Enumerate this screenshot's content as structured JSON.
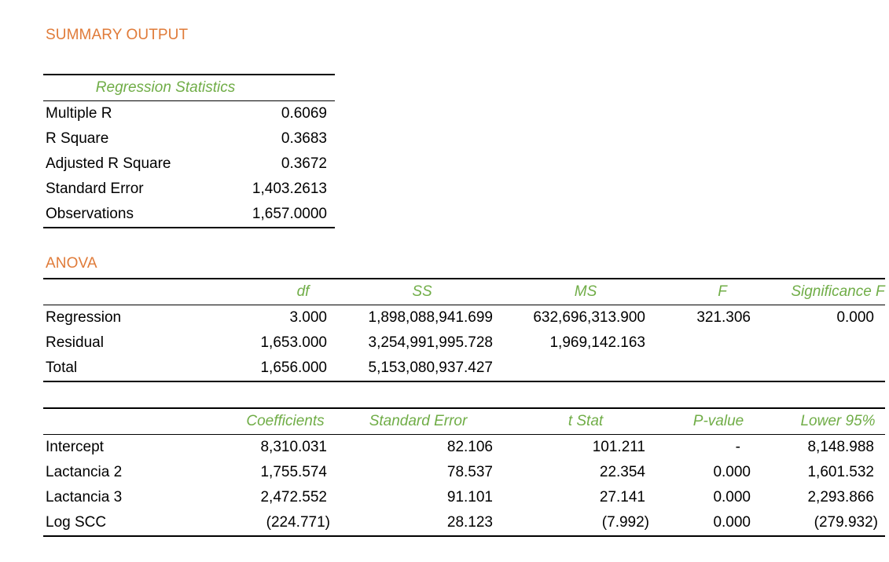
{
  "summary_title": "SUMMARY OUTPUT",
  "regression_statistics": {
    "header": "Regression Statistics",
    "rows": [
      {
        "label": "Multiple R",
        "value": "0.6069"
      },
      {
        "label": "R Square",
        "value": "0.3683"
      },
      {
        "label": "Adjusted R Square",
        "value": "0.3672"
      },
      {
        "label": "Standard Error",
        "value": "1,403.2613"
      },
      {
        "label": "Observations",
        "value": "1,657.0000"
      }
    ]
  },
  "anova": {
    "title": "ANOVA",
    "headers": [
      "df",
      "SS",
      "MS",
      "F",
      "Significance F"
    ],
    "rows": [
      {
        "label": "Regression",
        "df": "3.000",
        "ss": "1,898,088,941.699",
        "ms": "632,696,313.900",
        "f": "321.306",
        "sig_f": "0.000"
      },
      {
        "label": "Residual",
        "df": "1,653.000",
        "ss": "3,254,991,995.728",
        "ms": "1,969,142.163",
        "f": "",
        "sig_f": ""
      },
      {
        "label": "Total",
        "df": "1,656.000",
        "ss": "5,153,080,937.427",
        "ms": "",
        "f": "",
        "sig_f": ""
      }
    ]
  },
  "coefficients": {
    "headers": [
      "Coefficients",
      "Standard Error",
      "t Stat",
      "P-value",
      "Lower 95%"
    ],
    "rows": [
      {
        "label": "Intercept",
        "coef": "8,310.031",
        "se": "82.106",
        "t": "101.211",
        "p": "-",
        "lower": "8,148.988"
      },
      {
        "label": "Lactancia 2",
        "coef": "1,755.574",
        "se": "78.537",
        "t": "22.354",
        "p": "0.000",
        "lower": "1,601.532"
      },
      {
        "label": "Lactancia 3",
        "coef": "2,472.552",
        "se": "91.101",
        "t": "27.141",
        "p": "0.000",
        "lower": "2,293.866"
      },
      {
        "label": "Log SCC",
        "coef": "(224.771)",
        "se": "28.123",
        "t": "(7.992)",
        "p": "0.000",
        "lower": "(279.932)"
      }
    ]
  },
  "colors": {
    "title_orange": "#e07b39",
    "header_green": "#70ad47",
    "text": "#000000"
  }
}
